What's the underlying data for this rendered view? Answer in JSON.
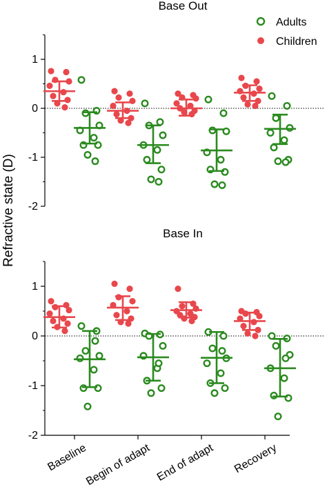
{
  "chart_data": [
    {
      "type": "scatter",
      "title": "Base Out",
      "ylabel": "Refractive state (D)",
      "ylim": [
        -2,
        1.5
      ],
      "yticks": [
        "1",
        "0",
        "-1",
        "-2"
      ],
      "categories": [
        "Baseline",
        "Begin of adapt",
        "End of adapt",
        "Recovery"
      ],
      "series": [
        {
          "name": "Children",
          "color": "#e8474c",
          "marker": "filled-circle",
          "mean": [
            0.35,
            -0.05,
            0.0,
            0.32
          ],
          "sd_low": [
            0.15,
            -0.2,
            -0.15,
            0.15
          ],
          "sd_high": [
            0.55,
            0.12,
            0.18,
            0.47
          ],
          "points": [
            [
              0.76,
              0.74,
              0.58,
              0.55,
              0.46,
              0.33,
              0.25,
              0.17,
              0.1,
              0.02
            ],
            [
              0.35,
              0.3,
              0.22,
              0.15,
              0.05,
              -0.05,
              -0.12,
              -0.2,
              -0.25,
              -0.3
            ],
            [
              0.3,
              0.27,
              0.22,
              0.2,
              0.1,
              0.05,
              0.0,
              -0.05,
              -0.08,
              -0.12
            ],
            [
              0.62,
              0.55,
              0.46,
              0.4,
              0.35,
              0.3,
              0.22,
              0.15,
              0.08,
              0.05
            ]
          ]
        },
        {
          "name": "Adults",
          "color": "#2a8a1e",
          "marker": "open-circle",
          "mean": [
            -0.4,
            -0.75,
            -0.86,
            -0.42
          ],
          "sd_low": [
            -0.72,
            -1.12,
            -1.28,
            -0.73
          ],
          "sd_high": [
            -0.08,
            -0.35,
            -0.43,
            -0.13
          ],
          "points": [
            [
              0.58,
              -0.05,
              -0.1,
              -0.35,
              -0.45,
              -0.6,
              -0.75,
              -0.75,
              -0.95,
              -1.08
            ],
            [
              0.1,
              -0.28,
              -0.35,
              -0.55,
              -0.75,
              -0.85,
              -1.05,
              -1.25,
              -1.45,
              -1.5
            ],
            [
              0.18,
              -0.1,
              -0.45,
              -0.47,
              -0.9,
              -1.05,
              -1.25,
              -1.3,
              -1.55,
              -1.57
            ],
            [
              0.25,
              0.05,
              -0.2,
              -0.4,
              -0.5,
              -0.65,
              -0.8,
              -1.05,
              -1.08,
              -1.1
            ]
          ]
        }
      ]
    },
    {
      "type": "scatter",
      "title": "Base In",
      "ylabel": "Refractive state (D)",
      "ylim": [
        -2,
        1.5
      ],
      "yticks": [
        "1",
        "0",
        "-1",
        "-2"
      ],
      "categories": [
        "Baseline",
        "Begin of adapt",
        "End of adapt",
        "Recovery"
      ],
      "series": [
        {
          "name": "Children",
          "color": "#e8474c",
          "marker": "filled-circle",
          "mean": [
            0.38,
            0.57,
            0.52,
            0.3
          ],
          "sd_low": [
            0.17,
            0.32,
            0.37,
            0.12
          ],
          "sd_high": [
            0.6,
            0.8,
            0.68,
            0.47
          ],
          "points": [
            [
              0.7,
              0.62,
              0.58,
              0.52,
              0.45,
              0.35,
              0.3,
              0.25,
              0.18,
              0.1
            ],
            [
              1.05,
              0.95,
              0.78,
              0.7,
              0.62,
              0.5,
              0.42,
              0.35,
              0.28,
              0.25
            ],
            [
              0.95,
              0.65,
              0.6,
              0.55,
              0.5,
              0.45,
              0.42,
              0.38,
              0.35,
              0.3
            ],
            [
              0.5,
              0.48,
              0.45,
              0.4,
              0.35,
              0.28,
              0.2,
              0.12,
              0.05,
              0.0
            ]
          ]
        },
        {
          "name": "Adults",
          "color": "#2a8a1e",
          "marker": "open-circle",
          "mean": [
            -0.47,
            -0.43,
            -0.44,
            -0.65
          ],
          "sd_low": [
            -1.03,
            -0.9,
            -0.95,
            -1.22
          ],
          "sd_high": [
            0.1,
            0.04,
            0.08,
            -0.06
          ],
          "points": [
            [
              0.2,
              0.1,
              -0.3,
              -0.4,
              -0.45,
              -0.68,
              -1.05,
              -1.05,
              -1.42,
              -0.1
            ],
            [
              0.05,
              0.03,
              0.0,
              -0.2,
              -0.4,
              -0.65,
              -0.9,
              -1.05,
              -1.15,
              -0.55
            ],
            [
              0.08,
              0.0,
              -0.25,
              -0.45,
              -0.55,
              -0.75,
              -0.95,
              -1.05,
              -1.15,
              -0.3
            ],
            [
              0.0,
              -0.05,
              -0.2,
              -0.38,
              -0.65,
              -0.85,
              -1.2,
              -1.25,
              -1.62,
              -0.45
            ]
          ]
        }
      ]
    }
  ],
  "legend": [
    {
      "label": "Adults",
      "color": "#2a8a1e",
      "marker": "open-circle"
    },
    {
      "label": "Children",
      "color": "#e8474c",
      "marker": "filled-circle"
    }
  ],
  "legend_position": "top-right",
  "reference_line": 0
}
